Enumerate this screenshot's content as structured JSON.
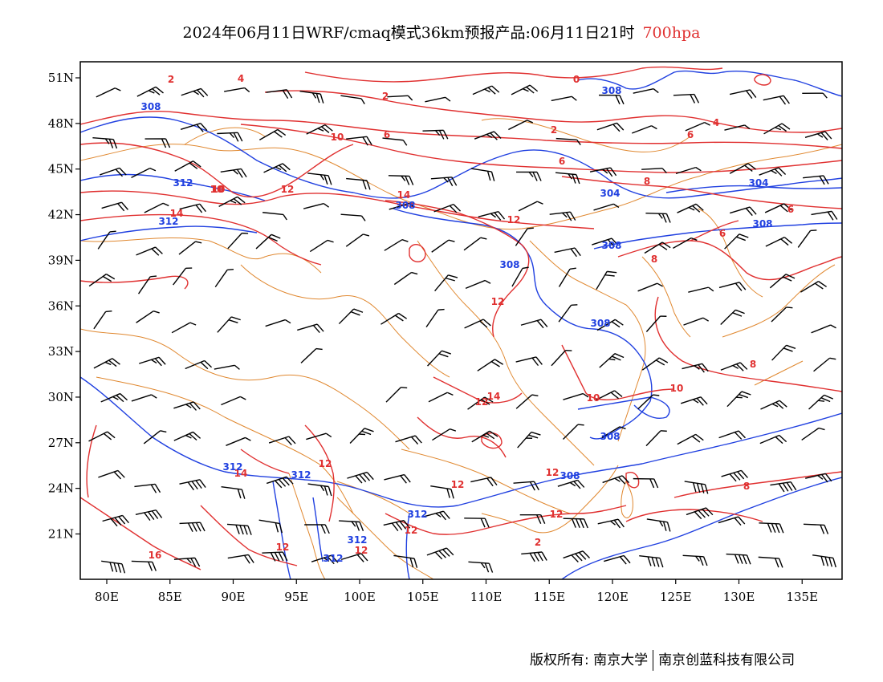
{
  "title": {
    "main": "2024年06月11日WRF/cmaq模式36km预报产品:06月11日21时",
    "level": "700hpa"
  },
  "colors": {
    "temperature_contour": "#e03030",
    "height_contour": "#2040e0",
    "boundary": "#e08830",
    "wind_barb": "#000000",
    "frame": "#000000"
  },
  "axes": {
    "x_ticks": [
      "80E",
      "85E",
      "90E",
      "95E",
      "100E",
      "105E",
      "110E",
      "115E",
      "120E",
      "125E",
      "130E",
      "135E"
    ],
    "y_ticks": [
      "51N",
      "48N",
      "45N",
      "42N",
      "39N",
      "36N",
      "33N",
      "30N",
      "27N",
      "24N",
      "21N"
    ],
    "lon_values": [
      80,
      85,
      90,
      95,
      100,
      105,
      110,
      115,
      120,
      125,
      130,
      135
    ],
    "lat_values": [
      51,
      48,
      45,
      42,
      39,
      36,
      33,
      30,
      27,
      24,
      21
    ]
  },
  "contour_labels": {
    "temperature": [
      "0",
      "2",
      "4",
      "2",
      "6",
      "6",
      "10",
      "12",
      "10",
      "14",
      "12",
      "14",
      "8",
      "6",
      "6",
      "8",
      "12",
      "14",
      "2",
      "10",
      "12",
      "10",
      "12",
      "14",
      "12",
      "12",
      "12",
      "16",
      "12",
      "12",
      "8",
      "8",
      "6",
      "4",
      "2",
      "10",
      "12"
    ],
    "height": [
      "308",
      "308",
      "312",
      "312",
      "308",
      "308",
      "304",
      "308",
      "308",
      "308",
      "308",
      "312",
      "312",
      "312",
      "312",
      "304",
      "312",
      "308"
    ]
  },
  "footer": {
    "copyright": "版权所有: 南京大学",
    "company": "南京创蓝科技有限公司"
  }
}
